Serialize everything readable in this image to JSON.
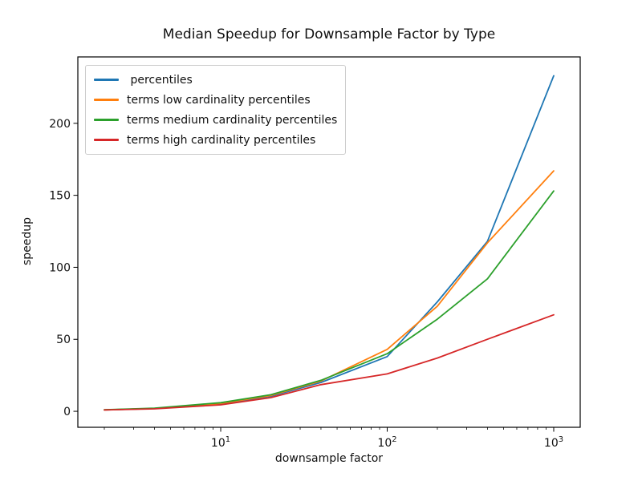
{
  "chart_data": {
    "type": "line",
    "title": "Median Speedup for Downsample Factor by Type",
    "xlabel": "downsample factor",
    "ylabel": "speedup",
    "x_scale": "log",
    "grid": false,
    "legend_position": "upper left",
    "x": [
      2,
      4,
      10,
      20,
      40,
      100,
      200,
      400,
      1000
    ],
    "series": [
      {
        "name": " percentiles",
        "color": "#1f77b4",
        "values": [
          1.0,
          1.9,
          5.0,
          10.5,
          20.0,
          38.0,
          76.0,
          118.0,
          233.0
        ]
      },
      {
        "name": "terms low cardinality percentiles",
        "color": "#ff7f0e",
        "values": [
          1.0,
          2.0,
          5.5,
          11.0,
          21.0,
          43.0,
          73.0,
          117.0,
          167.0
        ]
      },
      {
        "name": "terms medium cardinality percentiles",
        "color": "#2ca02c",
        "values": [
          1.1,
          2.2,
          6.0,
          11.5,
          21.5,
          40.0,
          64.0,
          92.0,
          153.0
        ]
      },
      {
        "name": "terms high cardinality percentiles",
        "color": "#d62728",
        "values": [
          0.9,
          1.7,
          4.5,
          9.5,
          18.5,
          26.0,
          37.0,
          50.0,
          67.0
        ]
      }
    ],
    "xticks": [
      10,
      100,
      1000
    ],
    "xtick_labels": [
      "10^1",
      "10^2",
      "10^3"
    ],
    "yticks": [
      0,
      50,
      100,
      150,
      200
    ],
    "xlim_log10": [
      0.142,
      3.159
    ],
    "ylim": [
      -11.1,
      246.1
    ],
    "axis_color": "#000000"
  }
}
